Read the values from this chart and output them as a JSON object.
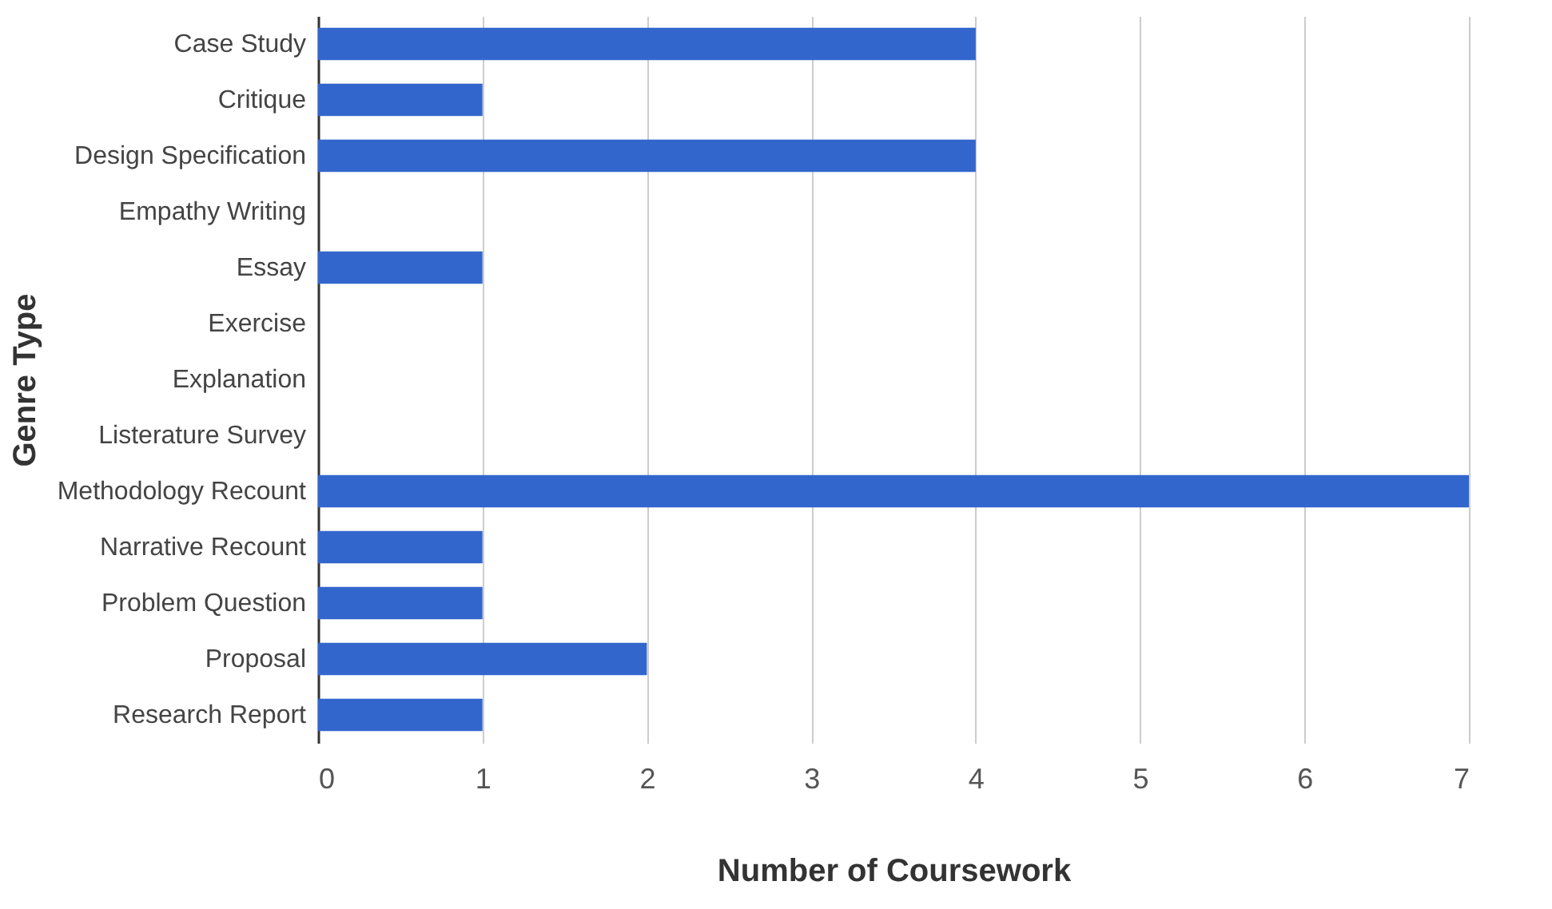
{
  "chart_data": {
    "type": "bar",
    "orientation": "horizontal",
    "xlabel": "Number of Coursework",
    "ylabel": "Genre Type",
    "categories": [
      "Case Study",
      "Critique",
      "Design Specification",
      "Empathy Writing",
      "Essay",
      "Exercise",
      "Explanation",
      "Listerature Survey",
      "Methodology Recount",
      "Narrative Recount",
      "Problem Question",
      "Proposal",
      "Research Report"
    ],
    "values": [
      4,
      1,
      4,
      0,
      1,
      0,
      0,
      0,
      7,
      1,
      1,
      2,
      1
    ],
    "color": "#3366cc",
    "xlim": [
      0,
      7
    ],
    "xticks": [
      0,
      1,
      2,
      3,
      4,
      5,
      6,
      7
    ],
    "grid": "x"
  }
}
